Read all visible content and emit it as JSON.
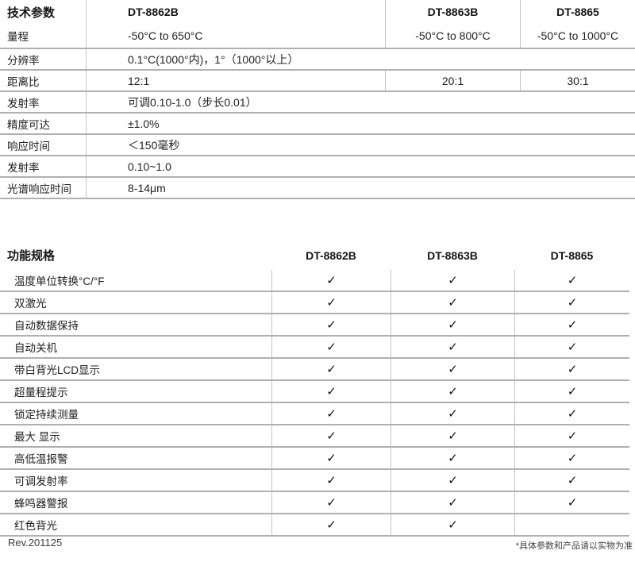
{
  "tech_specs": {
    "title": "技术参数",
    "model_headers": [
      "DT-8862B",
      "DT-8863B",
      "DT-8865"
    ],
    "range_row": {
      "label": "量程",
      "values": [
        "-50°C to 650°C",
        "-50°C to 800°C",
        "-50°C to 1000°C"
      ]
    },
    "rows": [
      {
        "label": "分辨率",
        "value": "0.1°C(1000°内)，1°（1000°以上）"
      },
      {
        "label": "距离比",
        "values": [
          "12:1",
          "20:1",
          "30:1"
        ]
      },
      {
        "label": "发射率",
        "value": "可调0.10-1.0（步长0.01）"
      },
      {
        "label": "精度可达",
        "value": "±1.0%"
      },
      {
        "label": "响应时间",
        "value": "＜150毫秒"
      },
      {
        "label": "发射率",
        "value": "0.10~1.0"
      },
      {
        "label": "光谱响应时间",
        "value": "8-14μm"
      }
    ]
  },
  "features": {
    "title": "功能规格",
    "model_headers": [
      "DT-8862B",
      "DT-8863B",
      "DT-8865"
    ],
    "check_glyph": "✓",
    "rows": [
      {
        "label": "温度单位转换°C/°F",
        "checks": [
          "✓",
          "✓",
          "✓"
        ]
      },
      {
        "label": "双激光",
        "checks": [
          "✓",
          "✓",
          "✓"
        ]
      },
      {
        "label": "自动数据保持",
        "checks": [
          "✓",
          "✓",
          "✓"
        ]
      },
      {
        "label": "自动关机",
        "checks": [
          "✓",
          "✓",
          "✓"
        ]
      },
      {
        "label": "带白背光LCD显示",
        "checks": [
          "✓",
          "✓",
          "✓"
        ]
      },
      {
        "label": "超量程提示",
        "checks": [
          "✓",
          "✓",
          "✓"
        ]
      },
      {
        "label": "锁定持续测量",
        "checks": [
          "✓",
          "✓",
          "✓"
        ]
      },
      {
        "label": "最大 显示",
        "checks": [
          "✓",
          "✓",
          "✓"
        ]
      },
      {
        "label": "高低温报警",
        "checks": [
          "✓",
          "✓",
          "✓"
        ]
      },
      {
        "label": "可调发射率",
        "checks": [
          "✓",
          "✓",
          "✓"
        ]
      },
      {
        "label": "蜂鸣器警报",
        "checks": [
          "✓",
          "✓",
          "✓"
        ]
      },
      {
        "label": "红色背光",
        "checks": [
          "✓",
          "✓",
          ""
        ]
      }
    ]
  },
  "footer": {
    "revision": "Rev.201125",
    "note": "*具体参数和产品请以实物为准"
  }
}
